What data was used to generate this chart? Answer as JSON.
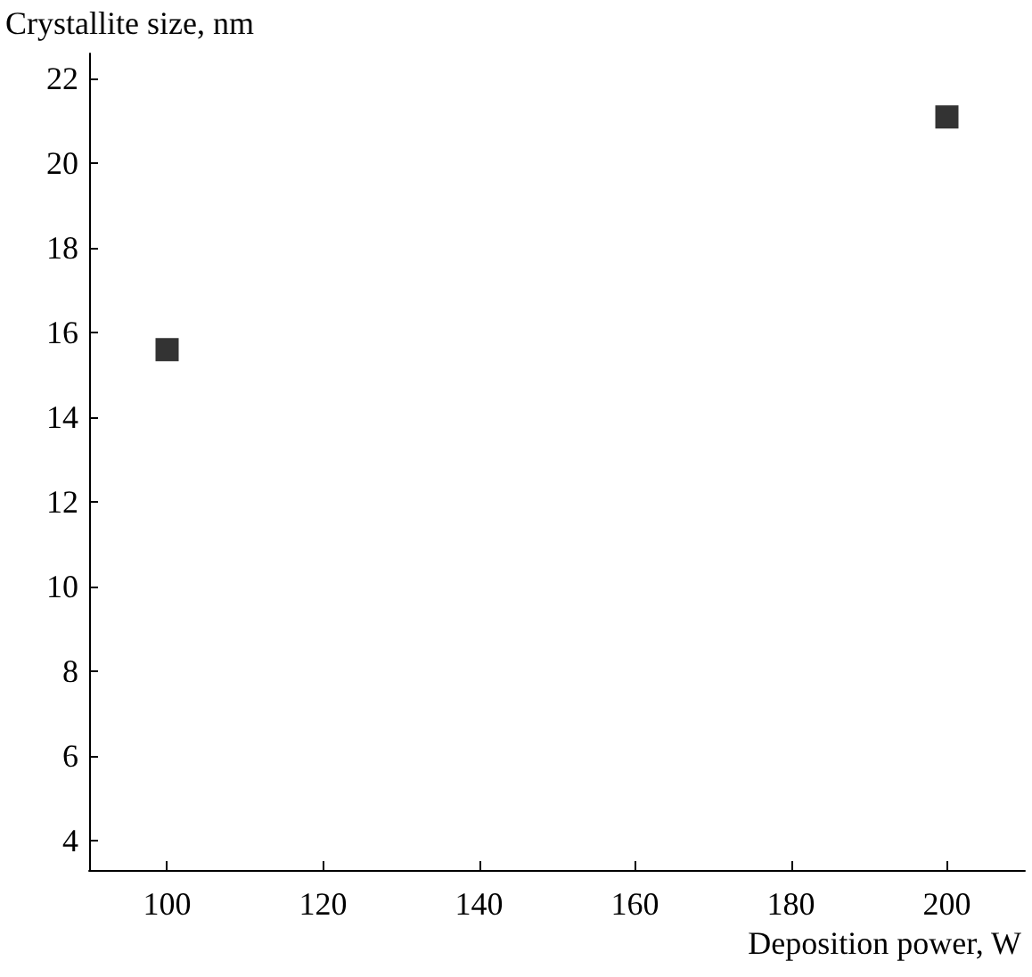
{
  "chart_data": {
    "type": "scatter",
    "xlabel": "Deposition power, W",
    "ylabel": "Crystallite size, nm",
    "x": [
      100,
      200
    ],
    "series": [
      {
        "color": "#000000",
        "values": [
          15.6,
          21.1
        ]
      }
    ],
    "xlim": [
      90,
      210
    ],
    "xticks": [
      100,
      120,
      140,
      160,
      180,
      200
    ],
    "ylim": [
      3.3,
      22.6
    ],
    "yticks": [
      4,
      6,
      8,
      10,
      12,
      14,
      16,
      18,
      20,
      22
    ],
    "marker": "square",
    "grid": false
  }
}
